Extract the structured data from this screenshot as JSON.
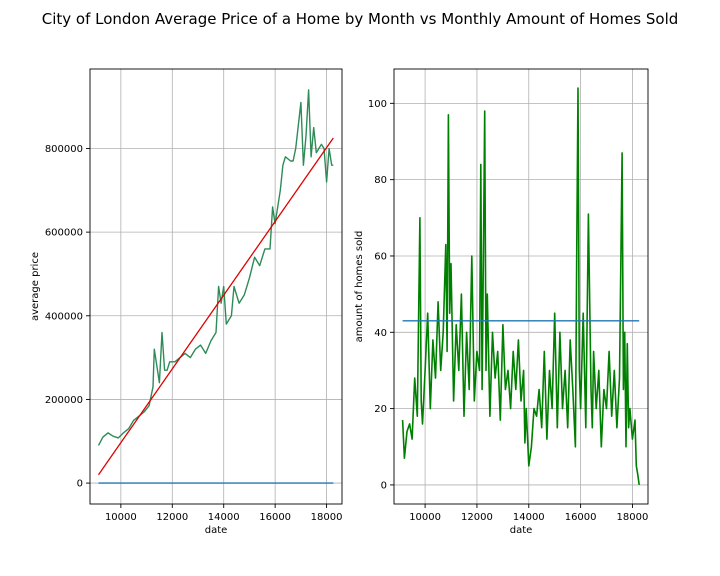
{
  "figure": {
    "title": "City of London Average Price of a Home by Month vs Monthly Amount of Homes Sold"
  },
  "colors": {
    "price_series": "#2e8b57",
    "trend_line": "#e00000",
    "baseline": "#1f77b4",
    "sales_series": "#008000",
    "mean_line": "#1f77b4",
    "grid": "#b0b0b0",
    "axes": "#000000"
  },
  "chart_data": [
    {
      "type": "line",
      "xlabel": "date",
      "ylabel": "average price",
      "xlim": [
        8800,
        18600
      ],
      "ylim": [
        -50000,
        990000
      ],
      "xticks": [
        10000,
        12000,
        14000,
        16000,
        18000
      ],
      "yticks": [
        0,
        200000,
        400000,
        600000,
        800000
      ],
      "tick_labels_x": [
        "10000",
        "12000",
        "14000",
        "16000",
        "18000"
      ],
      "tick_labels_y": [
        "0",
        "200000",
        "400000",
        "600000",
        "800000"
      ],
      "grid": true,
      "series": [
        {
          "role": "average price",
          "x": [
            9131,
            9300,
            9500,
            9700,
            9900,
            10100,
            10300,
            10500,
            10700,
            10900,
            11100,
            11250,
            11300,
            11500,
            11600,
            11700,
            11800,
            11900,
            12100,
            12300,
            12500,
            12700,
            12900,
            13100,
            13300,
            13500,
            13700,
            13800,
            13900,
            14000,
            14100,
            14300,
            14400,
            14600,
            14800,
            15000,
            15200,
            15400,
            15600,
            15800,
            15900,
            16000,
            16200,
            16300,
            16400,
            16600,
            16700,
            16800,
            17000,
            17100,
            17200,
            17300,
            17400,
            17500,
            17600,
            17700,
            17800,
            17900,
            18000,
            18100,
            18200,
            18262
          ],
          "y": [
            90000,
            110000,
            120000,
            112000,
            108000,
            120000,
            130000,
            150000,
            160000,
            170000,
            185000,
            230000,
            320000,
            240000,
            360000,
            270000,
            270000,
            290000,
            290000,
            300000,
            310000,
            300000,
            320000,
            330000,
            310000,
            340000,
            360000,
            470000,
            430000,
            470000,
            380000,
            400000,
            470000,
            430000,
            450000,
            490000,
            540000,
            520000,
            560000,
            560000,
            660000,
            620000,
            700000,
            760000,
            780000,
            770000,
            770000,
            800000,
            910000,
            760000,
            830000,
            940000,
            780000,
            850000,
            790000,
            800000,
            810000,
            800000,
            720000,
            800000,
            760000,
            760000
          ]
        },
        {
          "role": "linear trend",
          "x": [
            9131,
            18262
          ],
          "y": [
            20000,
            825000
          ]
        },
        {
          "role": "baseline",
          "x": [
            9131,
            18262
          ],
          "y": [
            0,
            0
          ]
        }
      ]
    },
    {
      "type": "line",
      "xlabel": "date",
      "ylabel": "amount of homes sold",
      "xlim": [
        8800,
        18600
      ],
      "ylim": [
        -5,
        109
      ],
      "xticks": [
        10000,
        12000,
        14000,
        16000,
        18000
      ],
      "yticks": [
        0,
        20,
        40,
        60,
        80,
        100
      ],
      "tick_labels_x": [
        "10000",
        "12000",
        "14000",
        "16000",
        "18000"
      ],
      "tick_labels_y": [
        "0",
        "20",
        "40",
        "60",
        "80",
        "100"
      ],
      "grid": true,
      "series": [
        {
          "role": "homes sold",
          "x": [
            9131,
            9200,
            9300,
            9400,
            9500,
            9600,
            9700,
            9800,
            9850,
            9900,
            10000,
            10100,
            10200,
            10300,
            10400,
            10500,
            10600,
            10700,
            10800,
            10850,
            10900,
            10950,
            11000,
            11100,
            11200,
            11300,
            11400,
            11500,
            11600,
            11700,
            11800,
            11900,
            12000,
            12100,
            12150,
            12200,
            12250,
            12300,
            12350,
            12400,
            12500,
            12600,
            12700,
            12800,
            12900,
            13000,
            13100,
            13200,
            13300,
            13400,
            13500,
            13600,
            13700,
            13800,
            13850,
            13900,
            14000,
            14100,
            14200,
            14300,
            14400,
            14500,
            14600,
            14700,
            14800,
            14900,
            15000,
            15100,
            15200,
            15300,
            15400,
            15500,
            15600,
            15700,
            15800,
            15850,
            15900,
            15950,
            16000,
            16100,
            16200,
            16300,
            16400,
            16450,
            16500,
            16600,
            16700,
            16800,
            16900,
            17000,
            17100,
            17200,
            17300,
            17400,
            17500,
            17600,
            17650,
            17700,
            17750,
            17800,
            17850,
            17900,
            18000,
            18100,
            18150,
            18200,
            18262
          ],
          "y": [
            17,
            7,
            14,
            16,
            12,
            28,
            18,
            70,
            22,
            16,
            30,
            45,
            20,
            38,
            28,
            48,
            30,
            40,
            63,
            35,
            97,
            45,
            58,
            22,
            42,
            30,
            50,
            18,
            40,
            25,
            60,
            22,
            35,
            30,
            84,
            25,
            60,
            98,
            30,
            50,
            18,
            40,
            28,
            35,
            17,
            42,
            25,
            30,
            20,
            35,
            25,
            38,
            22,
            30,
            11,
            20,
            5,
            10,
            20,
            18,
            25,
            15,
            35,
            12,
            30,
            20,
            45,
            15,
            40,
            20,
            30,
            15,
            38,
            25,
            10,
            60,
            104,
            30,
            20,
            45,
            15,
            71,
            25,
            15,
            35,
            20,
            30,
            10,
            25,
            20,
            35,
            18,
            30,
            15,
            28,
            87,
            25,
            40,
            10,
            37,
            15,
            20,
            12,
            17,
            5,
            3,
            0
          ]
        },
        {
          "role": "mean",
          "x": [
            9131,
            18262
          ],
          "y": [
            43,
            43
          ]
        }
      ]
    }
  ]
}
